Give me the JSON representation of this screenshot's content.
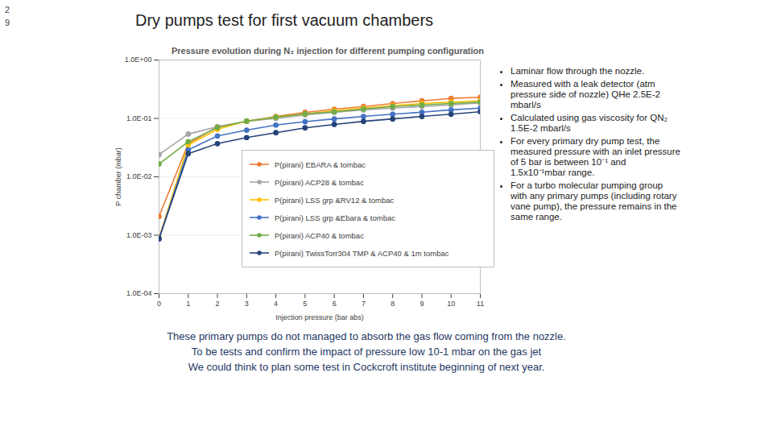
{
  "chart_data": {
    "type": "line",
    "title": "Pressure evolution during N₂ injection for different pumping configuration",
    "x_label": "Injection pressure (bar abs)",
    "y_label": "P chamber (mbar)",
    "x": [
      0,
      1,
      2,
      3,
      4,
      5,
      6,
      7,
      8,
      9,
      10,
      11
    ],
    "xlim": [
      0,
      11
    ],
    "xticks": [
      0,
      1,
      2,
      3,
      4,
      5,
      6,
      7,
      8,
      9,
      10,
      11
    ],
    "ylim": [
      0.0001,
      1
    ],
    "yticks": [
      {
        "value": 0.0001,
        "label": "1.0E-04"
      },
      {
        "value": 0.001,
        "label": "1.0E-03"
      },
      {
        "value": 0.01,
        "label": "1.0E-02"
      },
      {
        "value": 0.1,
        "label": "1.0E-01"
      },
      {
        "value": 1,
        "label": "1.0E+00"
      }
    ],
    "log": "y",
    "grid": true,
    "legend": "bottom",
    "marker": "circle",
    "series": [
      {
        "name": "P(pirani) EBARA & tombac",
        "color": "#ed7d31",
        "values": [
          0.0021,
          0.037,
          0.072,
          0.089,
          0.108,
          0.127,
          0.144,
          0.16,
          0.18,
          0.2,
          0.22,
          0.23
        ]
      },
      {
        "name": "P(pirani) ACP28 & tombac",
        "color": "#a5a5a5",
        "values": [
          0.024,
          0.054,
          0.072,
          0.089,
          0.1,
          0.115,
          0.127,
          0.14,
          0.15,
          0.16,
          0.17,
          0.185
        ]
      },
      {
        "name": "P(pirani) LSS grp &RV12 & tombac",
        "color": "#ffc000",
        "values": [
          0.0009,
          0.035,
          0.065,
          0.09,
          0.105,
          0.12,
          0.135,
          0.15,
          0.165,
          0.18,
          0.19,
          0.2
        ]
      },
      {
        "name": "P(pirani) LSS grp &Ebara & tombac",
        "color": "#4472c4",
        "values": [
          0.00087,
          0.029,
          0.05,
          0.063,
          0.077,
          0.088,
          0.098,
          0.108,
          0.118,
          0.128,
          0.14,
          0.15
        ]
      },
      {
        "name": "P(pirani) ACP40 & tombac",
        "color": "#70ad47",
        "values": [
          0.0166,
          0.04,
          0.07,
          0.09,
          0.105,
          0.12,
          0.13,
          0.145,
          0.16,
          0.17,
          0.18,
          0.19
        ]
      },
      {
        "name": "P(pirani) TwissTorr304 TMP & ACP40 & 1m tombac",
        "color": "#264478",
        "values": [
          0.00087,
          0.025,
          0.037,
          0.047,
          0.057,
          0.069,
          0.079,
          0.089,
          0.098,
          0.108,
          0.118,
          0.13
        ]
      }
    ]
  },
  "slide": {
    "number": "29",
    "title": "Dry pumps test for first vacuum chambers",
    "bullets": [
      "Laminar flow through the nozzle.",
      "Measured with a leak detector (atm pressure side of nozzle) QHe 2.5E-2 mbarl/s",
      "Calculated using gas viscosity for QN₂ 1.5E-2 mbarl/s",
      "For every primary dry pump test, the measured pressure with an inlet pressure of 5 bar is between 10⁻¹ and 1.5x10⁻¹mbar range.",
      "For a turbo molecular pumping group with any primary pumps (including rotary vane pump), the pressure remains in the same range."
    ],
    "caption": [
      "These primary pumps do not managed to absorb the gas flow coming from the nozzle.",
      "To be tests and confirm the impact of pressure low 10-1 mbar on the gas jet",
      "We could think to plan some test in Cockcroft institute beginning of next year."
    ]
  }
}
